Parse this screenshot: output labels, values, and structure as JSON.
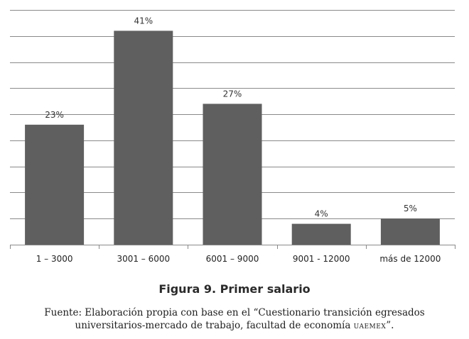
{
  "chart_data": {
    "type": "bar",
    "categories": [
      "1 – 3000",
      "3001 – 6000",
      "6001 – 9000",
      "9001 -  12000",
      "más de  12000"
    ],
    "values": [
      23,
      41,
      27,
      4,
      5
    ],
    "value_labels": [
      "23%",
      "41%",
      "27%",
      "4%",
      "5%"
    ],
    "ylim": [
      0,
      45
    ],
    "grid": true,
    "colors": {
      "bar": "#5f5f5f",
      "grid": "#8a8a8a"
    }
  },
  "caption": {
    "title": "Figura 9. Primer salario",
    "source_line1": "Fuente: Elaboración propia con base en el “Cuestionario transición egresados",
    "source_line2_pre": "universitarios-mercado de trabajo, facultad de economía ",
    "source_line2_caps": "uaemex",
    "source_line2_post": "”."
  }
}
